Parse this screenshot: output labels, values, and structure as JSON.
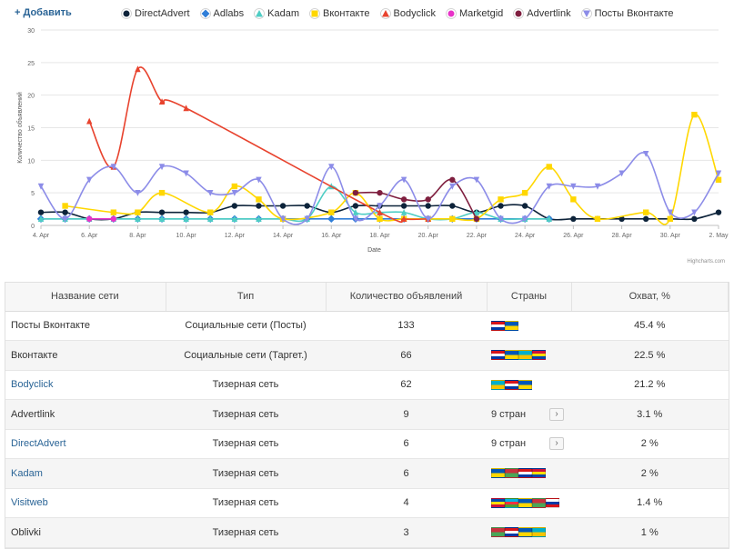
{
  "toolbar": {
    "add_label": "+ Добавить"
  },
  "chart_data": {
    "type": "line",
    "xlabel": "Date",
    "ylabel": "Количество объявлений",
    "ylim": [
      0,
      30
    ],
    "y_ticks": [
      "0",
      "5",
      "10",
      "15",
      "20",
      "25",
      "30"
    ],
    "x_ticks": [
      "4. Apr",
      "6. Apr",
      "8. Apr",
      "10. Apr",
      "12. Apr",
      "14. Apr",
      "16. Apr",
      "18. Apr",
      "20. Apr",
      "22. Apr",
      "24. Apr",
      "26. Apr",
      "28. Apr",
      "30. Apr",
      "2. May"
    ],
    "x_range": [
      "2014-04-04",
      "2014-05-02"
    ],
    "grid": true,
    "legend_placement": "top",
    "credits": "Highcharts.com",
    "series": [
      {
        "name": "DirectAdvert",
        "color": "#0d233a",
        "marker": "circle",
        "x": [
          "2014-04-04",
          "2014-04-05",
          "2014-04-06",
          "2014-04-07",
          "2014-04-08",
          "2014-04-09",
          "2014-04-10",
          "2014-04-11",
          "2014-04-12",
          "2014-04-13",
          "2014-04-14",
          "2014-04-15",
          "2014-04-16",
          "2014-04-17",
          "2014-04-18",
          "2014-04-19",
          "2014-04-20",
          "2014-04-21",
          "2014-04-22",
          "2014-04-23",
          "2014-04-24",
          "2014-04-25",
          "2014-04-26",
          "2014-04-27",
          "2014-04-28",
          "2014-04-29",
          "2014-04-30",
          "2014-05-01",
          "2014-05-02"
        ],
        "y": [
          2,
          2,
          1,
          1,
          2,
          2,
          2,
          2,
          3,
          3,
          3,
          3,
          2,
          3,
          3,
          3,
          3,
          3,
          2,
          3,
          3,
          1,
          1,
          1,
          1,
          1,
          1,
          1,
          2
        ]
      },
      {
        "name": "Adlabs",
        "color": "#2f7ed8",
        "marker": "diamond",
        "x": [
          "2014-04-04",
          "2014-04-05",
          "2014-04-06",
          "2014-04-07",
          "2014-04-08",
          "2014-04-09",
          "2014-04-10",
          "2014-04-11",
          "2014-04-12",
          "2014-04-13",
          "2014-04-14",
          "2014-04-15",
          "2014-04-16",
          "2014-04-17",
          "2014-04-18",
          "2014-04-19",
          "2014-04-20",
          "2014-04-21",
          "2014-04-22",
          "2014-04-23",
          "2014-04-24",
          "2014-04-25"
        ],
        "y": [
          1,
          1,
          1,
          1,
          1,
          1,
          1,
          1,
          1,
          1,
          1,
          1,
          1,
          1,
          1,
          1,
          1,
          1,
          1,
          1,
          1,
          1
        ]
      },
      {
        "name": "Kadam",
        "color": "#4ecdc4",
        "marker": "triangle",
        "x": [
          "2014-04-04",
          "2014-04-05",
          "2014-04-06",
          "2014-04-07",
          "2014-04-08",
          "2014-04-09",
          "2014-04-10",
          "2014-04-11",
          "2014-04-12",
          "2014-04-13",
          "2014-04-14",
          "2014-04-15",
          "2014-04-16",
          "2014-04-17",
          "2014-04-18",
          "2014-04-19",
          "2014-04-20",
          "2014-04-21",
          "2014-04-22",
          "2014-04-23",
          "2014-04-24",
          "2014-04-25"
        ],
        "y": [
          1,
          1,
          1,
          1,
          1,
          1,
          1,
          1,
          1,
          1,
          1,
          1,
          6,
          2,
          2,
          2,
          1,
          1,
          2,
          1,
          1,
          1
        ]
      },
      {
        "name": "Вконтакте",
        "color": "#ffd700",
        "marker": "square",
        "x": [
          "2014-04-05",
          "2014-04-07",
          "2014-04-08",
          "2014-04-09",
          "2014-04-11",
          "2014-04-12",
          "2014-04-13",
          "2014-04-14",
          "2014-04-16",
          "2014-04-17",
          "2014-04-18",
          "2014-04-19",
          "2014-04-20",
          "2014-04-21",
          "2014-04-22",
          "2014-04-23",
          "2014-04-24",
          "2014-04-25",
          "2014-04-26",
          "2014-04-27",
          "2014-04-29",
          "2014-04-30",
          "2014-05-01",
          "2014-05-02"
        ],
        "y": [
          3,
          2,
          2,
          5,
          2,
          6,
          4,
          1,
          2,
          5,
          1,
          1,
          1,
          1,
          1,
          4,
          5,
          9,
          4,
          1,
          2,
          1,
          17,
          7
        ]
      },
      {
        "name": "Bodyclick",
        "color": "#e8432e",
        "marker": "triangle",
        "x": [
          "2014-04-06",
          "2014-04-07",
          "2014-04-08",
          "2014-04-09",
          "2014-04-10",
          "2014-04-18",
          "2014-04-19",
          "2014-04-20"
        ],
        "y": [
          16,
          9,
          24,
          19,
          18,
          2,
          1,
          1
        ]
      },
      {
        "name": "Marketgid",
        "color": "#e833c8",
        "marker": "circle",
        "x": [
          "2014-04-06",
          "2014-04-07"
        ],
        "y": [
          1,
          1
        ]
      },
      {
        "name": "Advertlink",
        "color": "#7f1f3f",
        "marker": "circle",
        "x": [
          "2014-04-17",
          "2014-04-18",
          "2014-04-19",
          "2014-04-20",
          "2014-04-21",
          "2014-04-22"
        ],
        "y": [
          5,
          5,
          4,
          4,
          7,
          1
        ]
      },
      {
        "name": "Посты Вконтакте",
        "color": "#8c8ce8",
        "marker": "triangle-down",
        "x": [
          "2014-04-04",
          "2014-04-05",
          "2014-04-06",
          "2014-04-07",
          "2014-04-08",
          "2014-04-09",
          "2014-04-10",
          "2014-04-11",
          "2014-04-12",
          "2014-04-13",
          "2014-04-14",
          "2014-04-15",
          "2014-04-16",
          "2014-04-17",
          "2014-04-18",
          "2014-04-19",
          "2014-04-20",
          "2014-04-21",
          "2014-04-22",
          "2014-04-23",
          "2014-04-24",
          "2014-04-25",
          "2014-04-26",
          "2014-04-27",
          "2014-04-28",
          "2014-04-29",
          "2014-04-30",
          "2014-05-01",
          "2014-05-02"
        ],
        "y": [
          6,
          1,
          7,
          9,
          5,
          9,
          8,
          5,
          5,
          7,
          1,
          1,
          9,
          1,
          3,
          7,
          1,
          6,
          7,
          1,
          1,
          6,
          6,
          6,
          8,
          11,
          2,
          2,
          8
        ]
      }
    ]
  },
  "table": {
    "headers": [
      "Название сети",
      "Тип",
      "Количество объявлений",
      "Страны",
      "Охват, %"
    ],
    "rows": [
      {
        "name": "Посты Вконтакте",
        "link": false,
        "type": "Социальные сети (Посты)",
        "count": "133",
        "countries_text": "",
        "flags": [
          [
            "#d7141a",
            "#ffffff",
            "#0039a6"
          ],
          [
            "#0057b7",
            "#ffd700"
          ]
        ],
        "coverage": "45.4 %"
      },
      {
        "name": "Вконтакте",
        "link": false,
        "type": "Социальные сети (Таргет.)",
        "count": "66",
        "countries_text": "",
        "flags": [
          [
            "#d7141a",
            "#ffffff",
            "#0039a6"
          ],
          [
            "#0057b7",
            "#ffd700"
          ],
          [
            "#00afca",
            "#f5c400"
          ],
          [
            "#d0103a",
            "#fcdd09",
            "#0046ae"
          ]
        ],
        "coverage": "22.5 %"
      },
      {
        "name": "Bodyclick",
        "link": true,
        "type": "Тизерная сеть",
        "count": "62",
        "countries_text": "",
        "flags": [
          [
            "#00afca",
            "#f5c400"
          ],
          [
            "#d7141a",
            "#ffffff",
            "#0039a6"
          ],
          [
            "#0057b7",
            "#ffd700"
          ]
        ],
        "coverage": "21.2 %"
      },
      {
        "name": "Advertlink",
        "link": false,
        "type": "Тизерная сеть",
        "count": "9",
        "countries_text": "9 стран",
        "flags": [],
        "coverage": "3.1 %"
      },
      {
        "name": "DirectAdvert",
        "link": true,
        "type": "Тизерная сеть",
        "count": "6",
        "countries_text": "9 стран",
        "flags": [],
        "coverage": "2 %"
      },
      {
        "name": "Kadam",
        "link": true,
        "type": "Тизерная сеть",
        "count": "6",
        "countries_text": "",
        "flags": [
          [
            "#0057b7",
            "#ffd700"
          ],
          [
            "#c8313e",
            "#4aa657"
          ],
          [
            "#d7141a",
            "#ffffff",
            "#0039a6"
          ],
          [
            "#d0103a",
            "#fcdd09",
            "#0046ae"
          ]
        ],
        "coverage": "2 %"
      },
      {
        "name": "Visitweb",
        "link": true,
        "type": "Тизерная сеть",
        "count": "4",
        "countries_text": "",
        "flags": [
          [
            "#0046ae",
            "#fcdd09",
            "#d0103a"
          ],
          [
            "#00b5e2",
            "#ef3340",
            "#509e2f"
          ],
          [
            "#0057b7",
            "#ffd700"
          ],
          [
            "#c8313e",
            "#4aa657"
          ],
          [
            "#ffffff",
            "#0039a6",
            "#d7141a"
          ]
        ],
        "coverage": "1.4 %"
      },
      {
        "name": "Oblivki",
        "link": false,
        "type": "Тизерная сеть",
        "count": "3",
        "countries_text": "",
        "flags": [
          [
            "#c8313e",
            "#4aa657"
          ],
          [
            "#d7141a",
            "#ffffff",
            "#0039a6"
          ],
          [
            "#0057b7",
            "#ffd700"
          ],
          [
            "#00afca",
            "#f5c400"
          ]
        ],
        "coverage": "1 %"
      }
    ]
  }
}
